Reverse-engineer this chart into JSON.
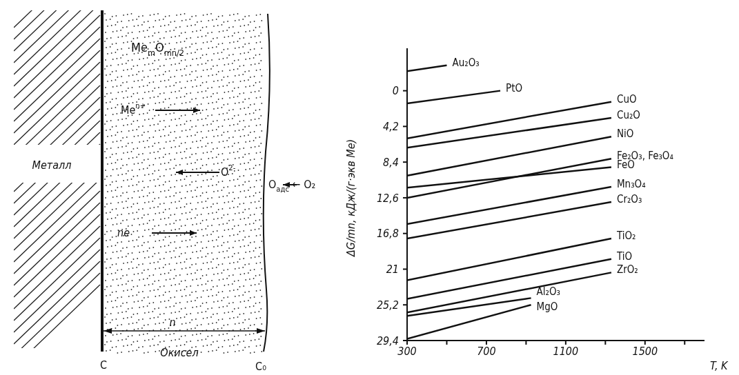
{
  "chart_data": [
    {
      "type": "other",
      "annotations": [
        "Me$_{m}$O$_{mn/2}$",
        "Me$^{n+}$",
        "O$^{2-}$",
        "ne",
        "Металл",
        "O$_{адс}$ ← O₂",
        "n",
        "Окисел",
        "C",
        "C₀"
      ]
    },
    {
      "type": "line",
      "ylabel": "ΔG/mn, кДж/(г·экв Me)",
      "xlabel": "T, K",
      "xlim": [
        300,
        1800
      ],
      "xticks": [
        300,
        {
          "value": 500,
          "label": null
        },
        700,
        {
          "value": 900,
          "label": null
        },
        1100,
        {
          "value": 1300,
          "label": null
        },
        1500,
        {
          "value": 1700,
          "label": null
        }
      ],
      "ylim": [
        29.4,
        -5
      ],
      "yticks": [
        0,
        {
          "value": 4.2,
          "label": "4,2"
        },
        {
          "value": 8.4,
          "label": "8,4"
        },
        {
          "value": 12.6,
          "label": "12,6"
        },
        {
          "value": 16.8,
          "label": "16,8"
        },
        21,
        {
          "value": 25.2,
          "label": "25,2"
        },
        {
          "value": 29.4,
          "label": "29,4"
        }
      ],
      "grid": false,
      "legend": false,
      "marker": "none",
      "line_style": "solid",
      "series": [
        {
          "name": "Au₂O₃",
          "color": "#111111",
          "x": [
            300,
            500
          ],
          "values": [
            -2.3,
            -3.0
          ]
        },
        {
          "name": "PtO",
          "color": "#111111",
          "x": [
            300,
            770
          ],
          "values": [
            1.5,
            0
          ]
        },
        {
          "name": "CuO",
          "color": "#111111",
          "x": [
            300,
            1330
          ],
          "values": [
            5.6,
            1.3
          ]
        },
        {
          "name": "Cu₂O",
          "color": "#111111",
          "x": [
            300,
            1330
          ],
          "values": [
            6.7,
            3.2
          ]
        },
        {
          "name": "NiO",
          "color": "#111111",
          "x": [
            300,
            1330
          ],
          "values": [
            10.0,
            5.4
          ]
        },
        {
          "name": "Fe₂O₃, Fe₃O₄",
          "color": "#111111",
          "x": [
            300,
            1330
          ],
          "values": [
            12.6,
            8.0
          ]
        },
        {
          "name": "FeO",
          "color": "#111111",
          "x": [
            300,
            1330
          ],
          "values": [
            11.4,
            9.0
          ]
        },
        {
          "name": "Mn₃O₄",
          "color": "#111111",
          "x": [
            300,
            1330
          ],
          "values": [
            15.7,
            11.3
          ]
        },
        {
          "name": "Cr₂O₃",
          "color": "#111111",
          "x": [
            300,
            1330
          ],
          "values": [
            17.4,
            13.1
          ]
        },
        {
          "name": "TiO₂",
          "color": "#111111",
          "x": [
            300,
            1330
          ],
          "values": [
            22.3,
            17.4
          ]
        },
        {
          "name": "TiO",
          "color": "#111111",
          "x": [
            300,
            1330
          ],
          "values": [
            24.5,
            19.8
          ]
        },
        {
          "name": "ZrO₂",
          "color": "#111111",
          "x": [
            300,
            1330
          ],
          "values": [
            26.1,
            21.4
          ]
        },
        {
          "name": "Al₂O₃",
          "color": "#111111",
          "x": [
            300,
            925
          ],
          "values": [
            26.5,
            24.4
          ]
        },
        {
          "name": "MgO",
          "color": "#111111",
          "x": [
            300,
            925
          ],
          "values": [
            29.2,
            25.2
          ]
        }
      ]
    }
  ]
}
